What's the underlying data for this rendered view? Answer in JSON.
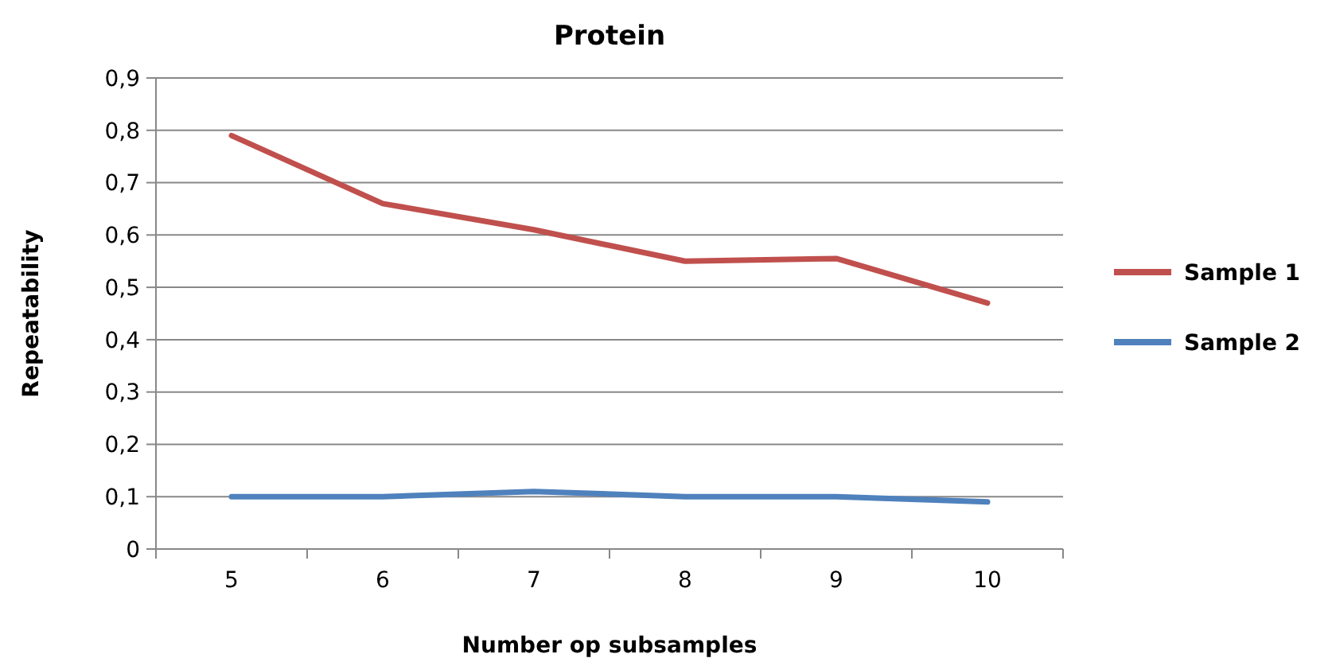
{
  "chart_data": {
    "type": "line",
    "title": "Protein",
    "xlabel": "Number op subsamples",
    "ylabel": "Repeatability",
    "categories": [
      "5",
      "6",
      "7",
      "8",
      "9",
      "10"
    ],
    "series": [
      {
        "name": "Sample 1",
        "color": "#c0504d",
        "values": [
          0.79,
          0.66,
          0.61,
          0.55,
          0.555,
          0.47
        ]
      },
      {
        "name": "Sample 2",
        "color": "#4f81bd",
        "values": [
          0.1,
          0.1,
          0.11,
          0.1,
          0.1,
          0.09
        ]
      }
    ],
    "ylim": [
      0,
      0.9
    ],
    "yticks": [
      {
        "value": 0,
        "label": "0"
      },
      {
        "value": 0.1,
        "label": "0,1"
      },
      {
        "value": 0.2,
        "label": "0,2"
      },
      {
        "value": 0.3,
        "label": "0,3"
      },
      {
        "value": 0.4,
        "label": "0,4"
      },
      {
        "value": 0.5,
        "label": "0,5"
      },
      {
        "value": 0.6,
        "label": "0,6"
      },
      {
        "value": 0.7,
        "label": "0,7"
      },
      {
        "value": 0.8,
        "label": "0,8"
      },
      {
        "value": 0.9,
        "label": "0,9"
      }
    ],
    "grid": "y",
    "legend": "right",
    "marker": "none",
    "line_style": "solid"
  }
}
